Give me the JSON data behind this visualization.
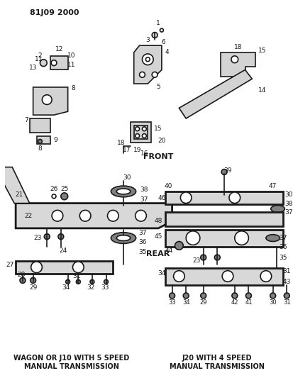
{
  "title": "81J09 2000",
  "bg_color": "#ffffff",
  "text_color": "#000000",
  "figsize": [
    4.13,
    5.33
  ],
  "dpi": 100,
  "front_label": "FRONT",
  "rear_label": "REAR",
  "bottom_left_line1": "WAGON OR J10 WITH 5 SPEED",
  "bottom_left_line2": "MANUAL TRANSMISSION",
  "bottom_right_line1": "J20 WITH 4 SPEED",
  "bottom_right_line2": "MANUAL TRANSMISSION"
}
